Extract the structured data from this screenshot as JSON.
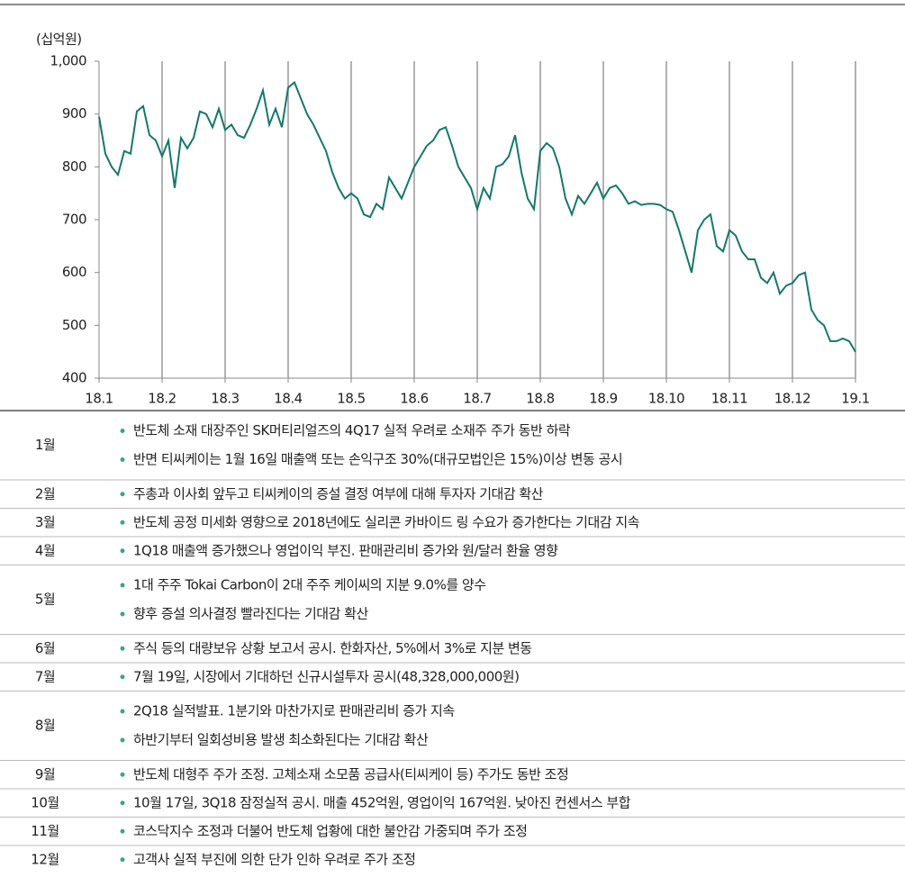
{
  "chart_data": {
    "type": "line",
    "y_unit_label": "(십억원)",
    "color": "#14786b",
    "categories": [
      "18.1",
      null,
      null,
      null,
      null,
      null,
      null,
      null,
      null,
      null,
      "18.2",
      null,
      null,
      null,
      null,
      null,
      null,
      null,
      null,
      null,
      "18.3",
      null,
      null,
      null,
      null,
      null,
      null,
      null,
      null,
      null,
      "18.4",
      null,
      null,
      null,
      null,
      null,
      null,
      null,
      null,
      null,
      "18.5",
      null,
      null,
      null,
      null,
      null,
      null,
      null,
      null,
      null,
      "18.6",
      null,
      null,
      null,
      null,
      null,
      null,
      null,
      null,
      null,
      "18.7",
      null,
      null,
      null,
      null,
      null,
      null,
      null,
      null,
      null,
      "18.8",
      null,
      null,
      null,
      null,
      null,
      null,
      null,
      null,
      null,
      "18.9",
      null,
      null,
      null,
      null,
      null,
      null,
      null,
      null,
      null,
      "18.10",
      null,
      null,
      null,
      null,
      null,
      null,
      null,
      null,
      null,
      "18.11",
      null,
      null,
      null,
      null,
      null,
      null,
      null,
      null,
      null,
      "18.12",
      null,
      null,
      null,
      null,
      null,
      null,
      null,
      null,
      null,
      "19.1"
    ],
    "values": [
      895,
      825,
      800,
      785,
      830,
      825,
      905,
      915,
      860,
      850,
      820,
      850,
      760,
      855,
      835,
      855,
      905,
      900,
      875,
      910,
      870,
      880,
      860,
      855,
      880,
      910,
      945,
      880,
      910,
      875,
      950,
      960,
      930,
      900,
      880,
      855,
      830,
      790,
      760,
      740,
      750,
      740,
      710,
      705,
      730,
      720,
      780,
      760,
      740,
      770,
      800,
      820,
      840,
      850,
      870,
      875,
      840,
      800,
      780,
      760,
      720,
      760,
      740,
      800,
      805,
      820,
      860,
      790,
      740,
      720,
      830,
      845,
      835,
      800,
      740,
      710,
      745,
      730,
      750,
      770,
      740,
      760,
      765,
      750,
      730,
      735,
      728,
      730,
      730,
      728,
      720,
      715,
      680,
      640,
      600,
      680,
      700,
      710,
      650,
      640,
      680,
      670,
      640,
      625,
      625,
      590,
      580,
      600,
      560,
      575,
      580,
      595,
      600,
      530,
      510,
      500,
      470,
      470,
      475,
      470,
      450
    ],
    "ylim": [
      400,
      1000
    ],
    "yticks": [
      400,
      500,
      600,
      700,
      800,
      900,
      {
        "value": 1000,
        "label": "1,000"
      }
    ],
    "grid": true
  },
  "table": {
    "rows": [
      {
        "month": "1월",
        "items": [
          "반도체 소재 대장주인 SK머티리얼즈의 4Q17 실적 우려로 소재주 주가 동반 하락",
          "반면 티씨케이는 1월 16일 매출액 또는 손익구조 30%(대규모법인은 15%)이상 변동 공시"
        ]
      },
      {
        "month": "2월",
        "items": [
          "주총과 이사회 앞두고 티씨케이의 증설 결정 여부에 대해 투자자 기대감 확산"
        ]
      },
      {
        "month": "3월",
        "items": [
          "반도체 공정 미세화 영향으로 2018년에도 실리콘 카바이드 링 수요가 증가한다는 기대감 지속"
        ]
      },
      {
        "month": "4월",
        "items": [
          "1Q18 매출액 증가했으나 영업이익 부진. 판매관리비 증가와 원/달러 환율 영향"
        ]
      },
      {
        "month": "5월",
        "items": [
          "1대 주주 Tokai Carbon이 2대 주주 케이씨의 지분 9.0%를 양수",
          "향후 증설 의사결정 빨라진다는 기대감 확산"
        ]
      },
      {
        "month": "6월",
        "items": [
          "주식 등의 대량보유 상황 보고서 공시. 한화자산, 5%에서 3%로 지분 변동"
        ]
      },
      {
        "month": "7월",
        "items": [
          "7월 19일, 시장에서 기대하던 신규시설투자 공시(48,328,000,000원)"
        ]
      },
      {
        "month": "8월",
        "items": [
          "2Q18 실적발표. 1분기와 마찬가지로 판매관리비 증가 지속",
          "하반기부터 일회성비용 발생 최소화된다는 기대감 확산"
        ]
      },
      {
        "month": "9월",
        "items": [
          "반도체 대형주 주가 조정. 고체소재 소모품 공급사(티씨케이 등) 주가도 동반 조정"
        ]
      },
      {
        "month": "10월",
        "items": [
          "10월 17일, 3Q18 잠정실적 공시. 매출 452억원, 영업이익 167억원. 낮아진 컨센서스 부합"
        ]
      },
      {
        "month": "11월",
        "items": [
          "코스닥지수 조정과 더불어 반도체 업황에 대한 불안감 가중되며 주가 조정"
        ]
      },
      {
        "month": "12월",
        "items": [
          "고객사 실적 부진에 의한 단가 인하 우려로 주가 조정"
        ]
      }
    ]
  }
}
